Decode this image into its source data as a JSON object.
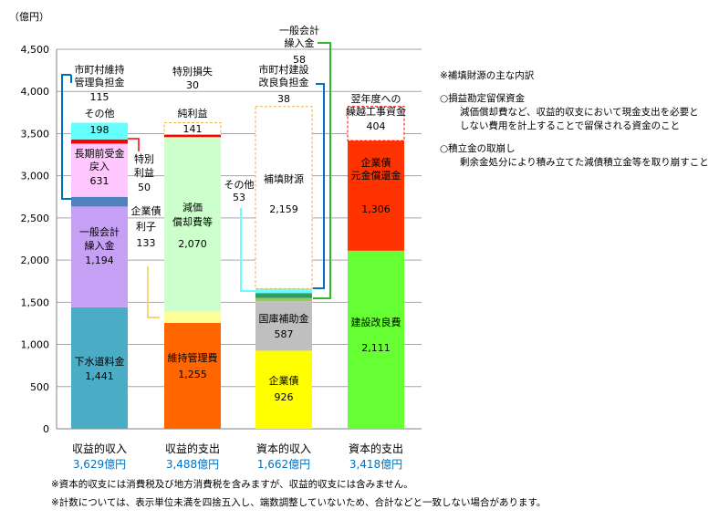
{
  "chart_data": {
    "type": "bar",
    "stacked": true,
    "ylabel": "（億円）",
    "ylim": [
      0,
      4500
    ],
    "yticks": [
      "0",
      "500",
      "1,000",
      "1,500",
      "2,000",
      "2,500",
      "3,000",
      "3,500",
      "4,000",
      "4,500"
    ],
    "grid": true,
    "columns": [
      {
        "category": "収益的収入",
        "total_label": "3,629億円",
        "segments": [
          {
            "label": "下水道料金",
            "value": 1441,
            "value_label": "1,441",
            "color": "#4BACC6"
          },
          {
            "label": "一般会計繰入金",
            "value": 1194,
            "value_label": "1,194",
            "color": "#C6A0F5"
          },
          {
            "label": "市町村維持管理負担金",
            "value": 115,
            "value_label": "115",
            "color": "#4F81BD"
          },
          {
            "label": "長期前受金戻入",
            "value": 631,
            "value_label": "631",
            "color": "#FFC6FF"
          },
          {
            "label": "特別利益",
            "value": 50,
            "value_label": "50",
            "color": "#FF0000"
          },
          {
            "label": "その他",
            "value": 198,
            "value_label": "198",
            "color": "#66FFFF"
          }
        ]
      },
      {
        "category": "収益的支出",
        "total_label": "3,488億円",
        "segments": [
          {
            "label": "維持管理費",
            "value": 1255,
            "value_label": "1,255",
            "color": "#FF6600"
          },
          {
            "label": "企業債利子",
            "value": 133,
            "value_label": "133",
            "color": "#FFFF99"
          },
          {
            "label": "減価償却費等",
            "value": 2070,
            "value_label": "2,070",
            "color": "#CCFFCC"
          },
          {
            "label": "特別損失",
            "value": 30,
            "value_label": "30",
            "color": "#FF0000"
          },
          {
            "label": "純利益",
            "value": 141,
            "value_label": "141",
            "color": "#FFFFFF"
          }
        ]
      },
      {
        "category": "資本的収入",
        "total_label": "1,662億円",
        "segments": [
          {
            "label": "企業債",
            "value": 926,
            "value_label": "926",
            "color": "#FFFF00"
          },
          {
            "label": "国庫補助金",
            "value": 587,
            "value_label": "587",
            "color": "#BFBFBF"
          },
          {
            "label": "市町村建設改良負担金",
            "value": 38,
            "value_label": "38",
            "color": "#92D050"
          },
          {
            "label": "一般会計繰入金",
            "value": 58,
            "value_label": "58",
            "color": "#339966"
          },
          {
            "label": "その他",
            "value": 53,
            "value_label": "53",
            "color": "#66FFFF"
          },
          {
            "label": "補填財源",
            "value": 2159,
            "value_label": "2,159",
            "color": "#FFFFFF"
          }
        ]
      },
      {
        "category": "資本的支出",
        "total_label": "3,418億円",
        "segments": [
          {
            "label": "建設改良費",
            "value": 2111,
            "value_label": "2,111",
            "color": "#66FF33"
          },
          {
            "label": "企業債元金償還金",
            "value": 1306,
            "value_label": "1,306",
            "color": "#FF3300"
          },
          {
            "label": "翌年度への繰越工事資金",
            "value": 404,
            "value_label": "404",
            "color": "#FFFFFF"
          }
        ]
      }
    ],
    "callouts": {
      "shicho_iji_1": "市町村維持",
      "shicho_iji_2": "管理負担金",
      "shicho_iji_val": "115",
      "sonota_1": "その他",
      "sonota_1_val": "198",
      "choki_1": "長期前受金",
      "choki_2": "戻入",
      "choki_val": "631",
      "tokubetsu_rieki_1": "特別",
      "tokubetsu_rieki_2": "利益",
      "tokubetsu_rieki_val": "50",
      "ippan_1": "一般会計",
      "ippan_2": "繰入金",
      "ippan_val": "1,194",
      "ryokin": "下水道料金",
      "ryokin_val": "1,441",
      "tokubetsu_sonshitsu": "特別損失",
      "tokubetsu_sonshitsu_val": "30",
      "junrieki": "純利益",
      "junrieki_val": "141",
      "kigyosai_rishi_1": "企業債",
      "kigyosai_rishi_2": "利子",
      "kigyosai_rishi_val": "133",
      "genka_1": "減価",
      "genka_2": "償却費等",
      "genka_val": "2,070",
      "iji": "維持管理費",
      "iji_val": "1,255",
      "shicho_kensetsu_1": "市町村建設",
      "shicho_kensetsu_2": "改良負担金",
      "shicho_kensetsu_val": "38",
      "ippan2_1": "一般会計",
      "ippan2_2": "繰入金",
      "ippan2_val": "58",
      "sonota_2": "その他",
      "sonota_2_val": "53",
      "hoten": "補填財源",
      "hoten_val": "2,159",
      "kokko": "国庫補助金",
      "kokko_val": "587",
      "kigyosai": "企業債",
      "kigyosai_val": "926",
      "yokunen_1": "翌年度への",
      "yokunen_2": "繰越工事資金",
      "yokunen_val": "404",
      "gankin_1": "企業債",
      "gankin_2": "元金償還金",
      "gankin_val": "1,306",
      "kensetsu": "建設改良費",
      "kensetsu_val": "2,111"
    }
  },
  "notes": {
    "heading": "※補填財源の主な内訳",
    "item1_title": "○損益勘定留保資金",
    "item1_body_1": "減価償却費など、収益的収支において現金支出を必要と",
    "item1_body_2": "しない費用を計上することで留保される資金のこと",
    "item2_title": "○積立金の取崩し",
    "item2_body": "剰余金処分により積み立てた減債積立金等を取り崩すこと"
  },
  "footnotes": {
    "line1": "※資本的収支には消費税及び地方消費税を含みますが、収益的収支には含みません。",
    "line2": "※計数については、表示単位未満を四捨五入し、端数調整していないため、合計などと一致しない場合があります。"
  }
}
